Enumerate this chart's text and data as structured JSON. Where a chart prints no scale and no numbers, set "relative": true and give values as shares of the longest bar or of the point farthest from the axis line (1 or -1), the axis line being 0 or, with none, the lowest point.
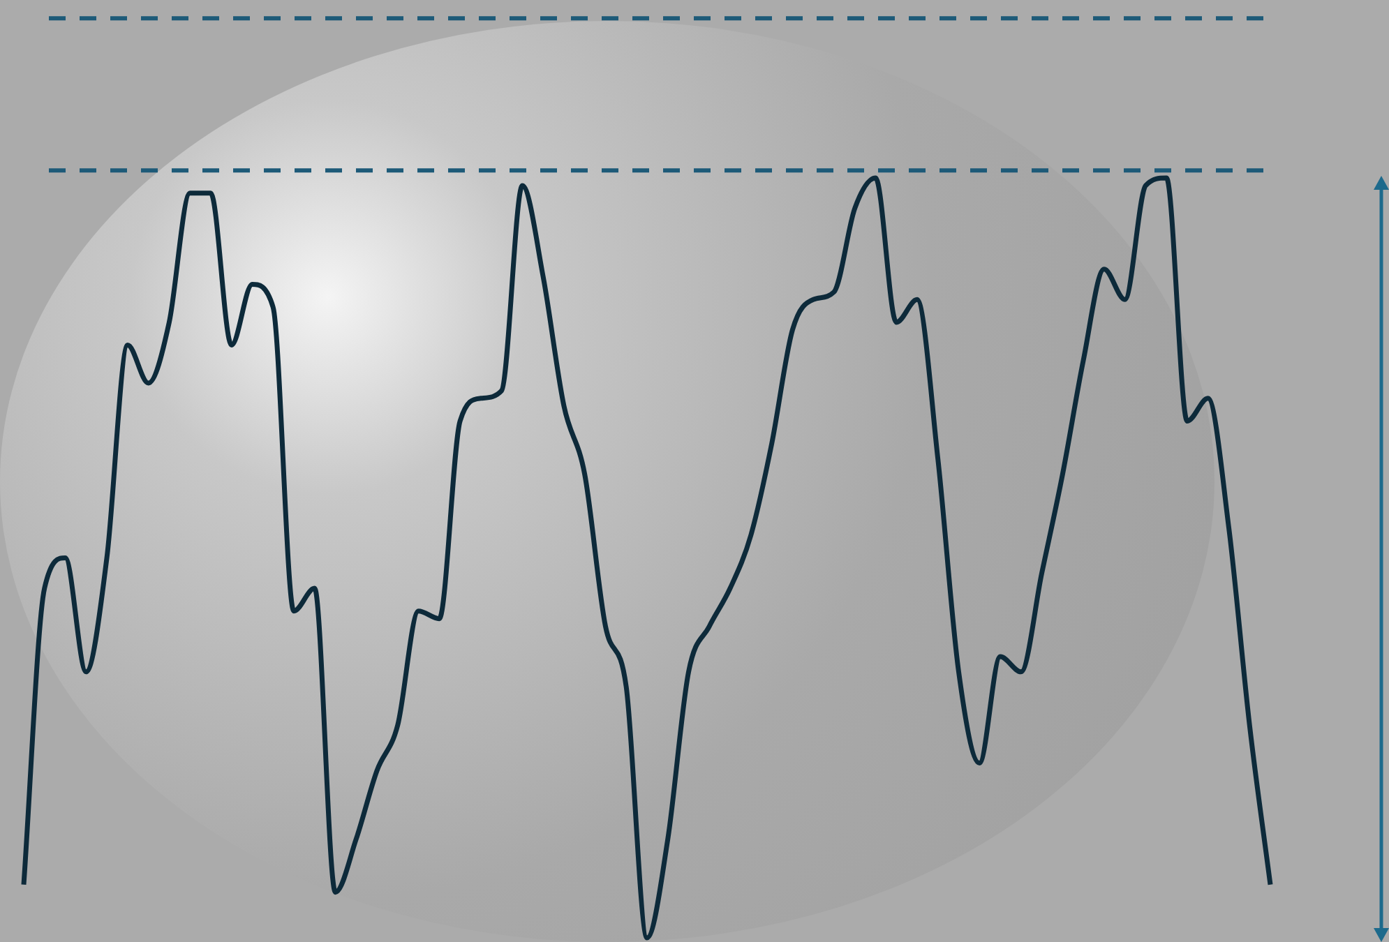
{
  "chart_data": {
    "type": "line",
    "relative": true,
    "legend": false,
    "marker": "none",
    "line_style": "solid",
    "categories": [
      null,
      null,
      null,
      null,
      null,
      null,
      null,
      null,
      null,
      null,
      null,
      null,
      null,
      null,
      null,
      null,
      null,
      null,
      null,
      null,
      null,
      null,
      null,
      null,
      null,
      null,
      null,
      null,
      null,
      null,
      null,
      null,
      null,
      null,
      null,
      null,
      null,
      null,
      null,
      null,
      null,
      null,
      null,
      null,
      null,
      null,
      null,
      null,
      null,
      null,
      null,
      null,
      null,
      null,
      null,
      null,
      null,
      null,
      null,
      null,
      null
    ],
    "series": [
      {
        "color": "#0d2a3a",
        "values": [
          0.07,
          0.46,
          0.5,
          0.35,
          0.5,
          0.78,
          0.73,
          0.81,
          0.98,
          0.98,
          0.78,
          0.86,
          0.83,
          0.43,
          0.46,
          0.06,
          0.13,
          0.22,
          0.28,
          0.43,
          0.42,
          0.68,
          0.71,
          0.72,
          0.99,
          0.87,
          0.7,
          0.61,
          0.41,
          0.33,
          0,
          0.13,
          0.35,
          0.41,
          0.46,
          0.53,
          0.65,
          0.8,
          0.84,
          0.85,
          0.96,
          1,
          0.81,
          0.84,
          0.63,
          0.35,
          0.23,
          0.37,
          0.35,
          0.48,
          0.61,
          0.76,
          0.88,
          0.84,
          0.99,
          1,
          0.68,
          0.71,
          0.54,
          0.28,
          0.07
        ]
      }
    ],
    "ref_lines": [
      {
        "axis": "y",
        "value": 1.21,
        "color": "#1d5a78",
        "line_style": "dashed"
      },
      {
        "axis": "y",
        "value": 1.01,
        "color": "#1d5a78",
        "line_style": "dashed"
      }
    ]
  }
}
